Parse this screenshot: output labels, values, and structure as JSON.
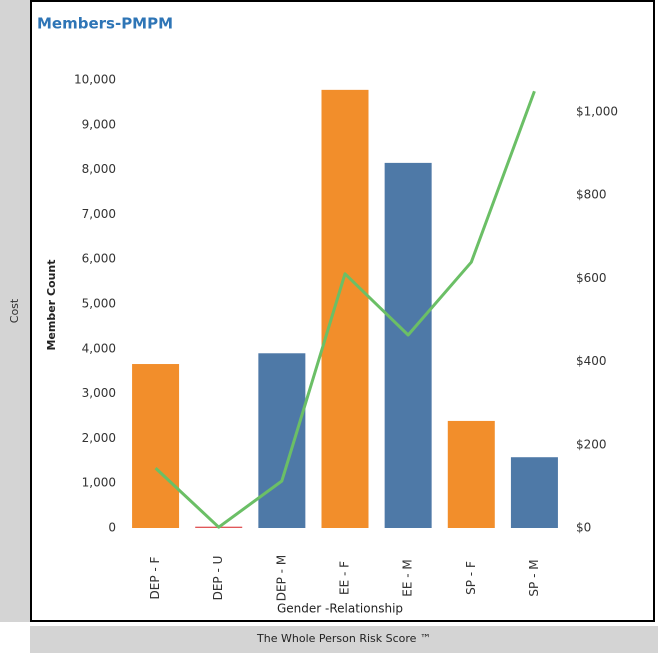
{
  "side_label": "Cost",
  "footer": "The Whole Person Risk Score ™",
  "chart_data": {
    "type": "bar_line",
    "title": "Members-PMPM",
    "x_label": "Gender -Relationship",
    "y_label": "Member Count",
    "categories": [
      "DEP - F",
      "DEP - U",
      "DEP - M",
      "EE - F",
      "EE - M",
      "SP - F",
      "SP - M"
    ],
    "series": [
      {
        "type": "bar",
        "values": [
          3660,
          30,
          3900,
          9780,
          8150,
          2390,
          1580
        ],
        "colors": [
          "#f28e2b",
          "#e15759",
          "#4e79a7",
          "#f28e2b",
          "#4e79a7",
          "#f28e2b",
          "#4e79a7"
        ]
      },
      {
        "type": "line",
        "axis": "y2",
        "color": "#6bbf66",
        "values": [
          144,
          2,
          113,
          611,
          464,
          639,
          1050
        ]
      }
    ],
    "ylim": [
      0,
      10000
    ],
    "yticks": [
      0,
      {
        "value": 1000,
        "label": "1,000"
      },
      {
        "value": 2000,
        "label": "2,000"
      },
      {
        "value": 3000,
        "label": "3,000"
      },
      {
        "value": 4000,
        "label": "4,000"
      },
      {
        "value": 5000,
        "label": "5,000"
      },
      {
        "value": 6000,
        "label": "6,000"
      },
      {
        "value": 7000,
        "label": "7,000"
      },
      {
        "value": 8000,
        "label": "8,000"
      },
      {
        "value": 9000,
        "label": "9,000"
      },
      {
        "value": 10000,
        "label": "10,000"
      }
    ],
    "y2lim": [
      0,
      1077
    ],
    "y2ticks": [
      {
        "value": 0,
        "label": "$0"
      },
      {
        "value": 200,
        "label": "$200"
      },
      {
        "value": 400,
        "label": "$400"
      },
      {
        "value": 600,
        "label": "$600"
      },
      {
        "value": 800,
        "label": "$800"
      },
      {
        "value": 1000,
        "label": "$1,000"
      }
    ],
    "grid": false
  }
}
